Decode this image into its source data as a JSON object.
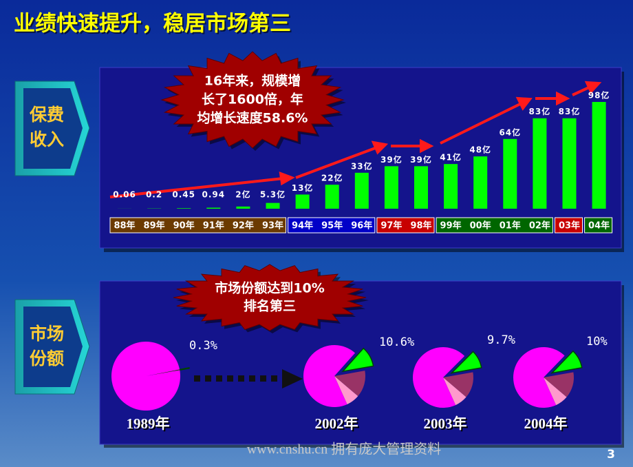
{
  "title": "业绩快速提升，稳居市场第三",
  "sections": [
    [
      "保费",
      "收入"
    ],
    [
      "市场",
      "份额"
    ]
  ],
  "footer": "www.cnshu.cn 拥有庞大管理资料",
  "page_number": "3",
  "chart_data": [
    {
      "type": "bar",
      "callout": [
        "16年来，规模增",
        "长了1600倍，年",
        "均增长速度58.6%"
      ],
      "category_groups": [
        {
          "color": "#6b3a00",
          "categories": [
            "88年",
            "89年",
            "90年",
            "91年",
            "92年",
            "93年"
          ]
        },
        {
          "color": "#0000c8",
          "categories": [
            "94年",
            "95年",
            "96年"
          ]
        },
        {
          "color": "#c80000",
          "categories": [
            "97年",
            "98年"
          ]
        },
        {
          "color": "#006600",
          "categories": [
            "99年",
            "00年",
            "01年",
            "02年"
          ]
        },
        {
          "color": "#c80000",
          "categories": [
            "03年"
          ]
        },
        {
          "color": "#006600",
          "categories": [
            "04年"
          ]
        }
      ],
      "values": [
        0.06,
        0.2,
        0.45,
        0.94,
        2,
        5.3,
        13,
        22,
        33,
        39,
        39,
        41,
        48,
        64,
        83,
        83,
        98
      ],
      "value_labels": [
        "0.06",
        "0.2",
        "0.45",
        "0.94",
        "2亿",
        "5.3亿",
        "13亿",
        "22亿",
        "33亿",
        "39亿",
        "39亿",
        "41亿",
        "48亿",
        "64亿",
        "83亿",
        "83亿",
        "98亿"
      ],
      "color": "#00ff00"
    },
    {
      "type": "pie",
      "callout": [
        "市场份额达到10%",
        "排名第三"
      ],
      "label": "1989年",
      "values": [
        0.3,
        99.7
      ],
      "value_labels": [
        "0.3%",
        null
      ],
      "colors": [
        "#00ff00",
        "#ff00ff"
      ]
    },
    {
      "type": "pie",
      "label": "2002年",
      "values": [
        10.6,
        14,
        7,
        68.4
      ],
      "value_labels": [
        "10.6%",
        null,
        null,
        null
      ],
      "colors": [
        "#00ff00",
        "#993366",
        "#ff99cc",
        "#ff00ff"
      ]
    },
    {
      "type": "pie",
      "label": "2003年",
      "values": [
        9.7,
        14,
        7,
        69.3
      ],
      "value_labels": [
        "9.7%",
        null,
        null,
        null
      ],
      "colors": [
        "#00ff00",
        "#993366",
        "#ff99cc",
        "#ff00ff"
      ]
    },
    {
      "type": "pie",
      "label": "2004年",
      "values": [
        10,
        14,
        7,
        69
      ],
      "value_labels": [
        "10%",
        null,
        null,
        null
      ],
      "colors": [
        "#00ff00",
        "#993366",
        "#ff99cc",
        "#ff00ff"
      ]
    }
  ]
}
